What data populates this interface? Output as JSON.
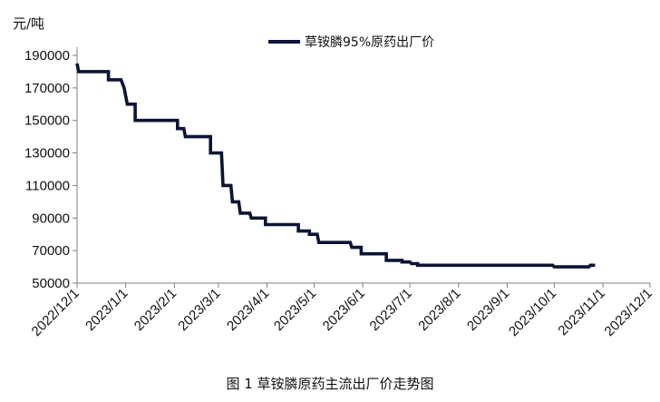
{
  "chart_data": {
    "type": "line",
    "unit_label": "元/吨",
    "caption": "图 1  草铵膦原药主流出厂价走势图",
    "ylim": [
      50000,
      190000
    ],
    "yticks": [
      50000,
      70000,
      90000,
      110000,
      130000,
      150000,
      170000,
      190000
    ],
    "xlim": [
      "2022/12/1",
      "2023/12/1"
    ],
    "xticks": [
      "2022/12/1",
      "2023/1/1",
      "2023/2/1",
      "2023/3/1",
      "2023/4/1",
      "2023/5/1",
      "2023/6/1",
      "2023/7/1",
      "2023/8/1",
      "2023/9/1",
      "2023/10/1",
      "2023/11/1",
      "2023/12/1"
    ],
    "legend_position": "top-center",
    "grid": false,
    "series": [
      {
        "name": "草铵膦95%原药出厂价",
        "color": "#0b1433",
        "points": [
          [
            "2022/12/1",
            185000
          ],
          [
            "2022/12/2",
            180000
          ],
          [
            "2022/12/21",
            180000
          ],
          [
            "2022/12/21",
            175000
          ],
          [
            "2022/12/29",
            175000
          ],
          [
            "2022/12/31",
            170000
          ],
          [
            "2023/1/2",
            160000
          ],
          [
            "2023/1/7",
            160000
          ],
          [
            "2023/1/7",
            150000
          ],
          [
            "2023/2/3",
            150000
          ],
          [
            "2023/2/3",
            145000
          ],
          [
            "2023/2/7",
            145000
          ],
          [
            "2023/2/8",
            140000
          ],
          [
            "2023/2/24",
            140000
          ],
          [
            "2023/2/24",
            130000
          ],
          [
            "2023/3/3",
            130000
          ],
          [
            "2023/3/4",
            110000
          ],
          [
            "2023/3/9",
            110000
          ],
          [
            "2023/3/10",
            100000
          ],
          [
            "2023/3/14",
            100000
          ],
          [
            "2023/3/15",
            93000
          ],
          [
            "2023/3/21",
            93000
          ],
          [
            "2023/3/22",
            90000
          ],
          [
            "2023/3/31",
            90000
          ],
          [
            "2023/3/31",
            86000
          ],
          [
            "2023/4/21",
            86000
          ],
          [
            "2023/4/21",
            82000
          ],
          [
            "2023/4/28",
            82000
          ],
          [
            "2023/4/28",
            80000
          ],
          [
            "2023/5/3",
            80000
          ],
          [
            "2023/5/4",
            75000
          ],
          [
            "2023/5/24",
            75000
          ],
          [
            "2023/5/25",
            72000
          ],
          [
            "2023/5/31",
            72000
          ],
          [
            "2023/5/31",
            68000
          ],
          [
            "2023/6/16",
            68000
          ],
          [
            "2023/6/16",
            64000
          ],
          [
            "2023/6/26",
            64000
          ],
          [
            "2023/6/26",
            63000
          ],
          [
            "2023/7/1",
            63000
          ],
          [
            "2023/7/2",
            62000
          ],
          [
            "2023/7/6",
            62000
          ],
          [
            "2023/7/6",
            61000
          ],
          [
            "2023/9/30",
            61000
          ],
          [
            "2023/10/1",
            60000
          ],
          [
            "2023/10/23",
            60000
          ],
          [
            "2023/10/24",
            61000
          ],
          [
            "2023/10/27",
            61000
          ]
        ]
      }
    ]
  }
}
